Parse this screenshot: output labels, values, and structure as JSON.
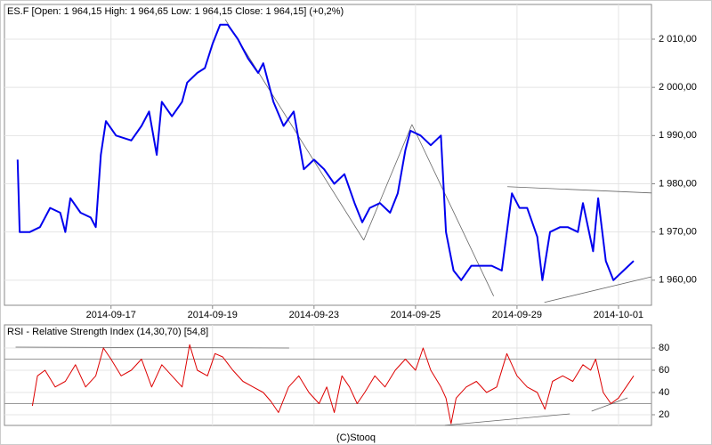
{
  "chart_data": [
    {
      "type": "line",
      "title": "ES.F [Open: 1 964,15  High: 1 964,65  Low: 1 964,15  Close: 1 964,15] (+0,2%)",
      "color": "#0000ee",
      "x": [
        0.16,
        0.2,
        0.4,
        0.6,
        0.8,
        1.0,
        1.1,
        1.2,
        1.4,
        1.6,
        1.7,
        1.8,
        1.9,
        2.1,
        2.4,
        2.6,
        2.75,
        2.9,
        3.0,
        3.2,
        3.4,
        3.5,
        3.7,
        3.85,
        4.0,
        4.15,
        4.3,
        4.5,
        4.7,
        4.9,
        5.0,
        5.2,
        5.4,
        5.6,
        5.8,
        6.0,
        6.2,
        6.4,
        6.6,
        6.8,
        6.95,
        7.1,
        7.3,
        7.5,
        7.65,
        7.8,
        7.9,
        8.1,
        8.3,
        8.5,
        8.6,
        8.75,
        8.9,
        9.1,
        9.3,
        9.5,
        9.7,
        9.9,
        10.05,
        10.2,
        10.4,
        10.5,
        10.65,
        10.85,
        11.0,
        11.2,
        11.3,
        11.5,
        11.6,
        11.75,
        11.9,
        12.1,
        12.3
      ],
      "values": [
        1985,
        1970,
        1970,
        1971,
        1975,
        1974,
        1970,
        1977,
        1974,
        1973,
        1971,
        1986,
        1993,
        1990,
        1989,
        1992,
        1995,
        1986,
        1997,
        1994,
        1997,
        2001,
        2003,
        2004,
        2009,
        2013,
        2013,
        2010,
        2006,
        2003,
        2005,
        1997,
        1992,
        1995,
        1983,
        1985,
        1983,
        1980,
        1982,
        1976,
        1972,
        1975,
        1976,
        1974,
        1978,
        1987,
        1991,
        1990,
        1988,
        1990,
        1970,
        1962,
        1960,
        1963,
        1963,
        1963,
        1962,
        1978,
        1975,
        1975,
        1969,
        1960,
        1970,
        1971,
        1971,
        1970,
        1976,
        1966,
        1977,
        1964,
        1960,
        1962,
        1964
      ],
      "trend_lines": [
        {
          "x": [
            4.25,
            6.98
          ],
          "y": [
            2014.1,
            1968.3
          ]
        },
        {
          "x": [
            6.98,
            7.93
          ],
          "y": [
            1968.3,
            1992.3
          ]
        },
        {
          "x": [
            7.93,
            9.54
          ],
          "y": [
            1992.3,
            1956.7
          ]
        },
        {
          "x": [
            9.81,
            12.65
          ],
          "y": [
            1979.4,
            1978.1
          ]
        },
        {
          "x": [
            10.54,
            12.65
          ],
          "y": [
            1955.4,
            1960.7
          ]
        }
      ],
      "xlim": [
        -0.1,
        12.65
      ],
      "xticks": [
        {
          "value": 2,
          "label": "2014-09-17"
        },
        {
          "value": 4,
          "label": "2014-09-19"
        },
        {
          "value": 6,
          "label": "2014-09-23"
        },
        {
          "value": 8,
          "label": "2014-09-25"
        },
        {
          "value": 10,
          "label": "2014-09-29"
        },
        {
          "value": 12,
          "label": "2014-10-01"
        }
      ],
      "ylim": [
        1954.8,
        2017.2
      ],
      "yticks": [
        {
          "value": 1960,
          "label": "1 960,00"
        },
        {
          "value": 1970,
          "label": "1 970,00"
        },
        {
          "value": 1980,
          "label": "1 980,00"
        },
        {
          "value": 1990,
          "label": "1 990,00"
        },
        {
          "value": 2000,
          "label": "2 000,00"
        },
        {
          "value": 2010,
          "label": "2 010,00"
        }
      ],
      "grid": true
    },
    {
      "type": "line",
      "title": "RSI - Relative Strength Index (14,30,70) [54,8]",
      "color": "#dd0000",
      "x": [
        0.45,
        0.55,
        0.7,
        0.9,
        1.1,
        1.3,
        1.5,
        1.7,
        1.85,
        2.0,
        2.2,
        2.4,
        2.6,
        2.8,
        3.0,
        3.2,
        3.4,
        3.55,
        3.7,
        3.9,
        4.05,
        4.2,
        4.4,
        4.6,
        4.8,
        5.0,
        5.15,
        5.3,
        5.5,
        5.7,
        5.9,
        6.1,
        6.25,
        6.4,
        6.55,
        6.7,
        6.85,
        7.0,
        7.2,
        7.4,
        7.6,
        7.8,
        8.0,
        8.15,
        8.3,
        8.5,
        8.6,
        8.7,
        8.8,
        9.0,
        9.2,
        9.4,
        9.6,
        9.8,
        10.0,
        10.2,
        10.4,
        10.55,
        10.7,
        10.9,
        11.1,
        11.3,
        11.45,
        11.55,
        11.7,
        11.85,
        12.0,
        12.15,
        12.3
      ],
      "values": [
        28,
        55,
        60,
        45,
        50,
        65,
        45,
        55,
        80,
        70,
        55,
        60,
        70,
        45,
        65,
        55,
        45,
        83,
        60,
        55,
        75,
        72,
        60,
        50,
        45,
        40,
        32,
        22,
        45,
        55,
        40,
        30,
        45,
        22,
        55,
        45,
        30,
        40,
        55,
        45,
        60,
        70,
        60,
        80,
        60,
        45,
        35,
        12,
        35,
        45,
        50,
        40,
        45,
        75,
        55,
        45,
        40,
        25,
        50,
        55,
        50,
        65,
        60,
        70,
        40,
        30,
        35,
        45,
        55
      ],
      "levels": [
        30,
        70
      ],
      "trend_lines": [
        {
          "x": [
            0.12,
            5.51
          ],
          "y": [
            80.8,
            80
          ]
        },
        {
          "x": [
            8.58,
            11.04
          ],
          "y": [
            10.5,
            20.8
          ]
        },
        {
          "x": [
            11.47,
            12.18
          ],
          "y": [
            23.2,
            35.2
          ]
        }
      ],
      "xlim": [
        -0.1,
        12.65
      ],
      "ylim": [
        10.4,
        100.8
      ],
      "yticks": [
        20,
        40,
        60,
        80
      ],
      "grid": true
    },
    {
      "type": "footer",
      "text": "(C)Stooq"
    }
  ]
}
